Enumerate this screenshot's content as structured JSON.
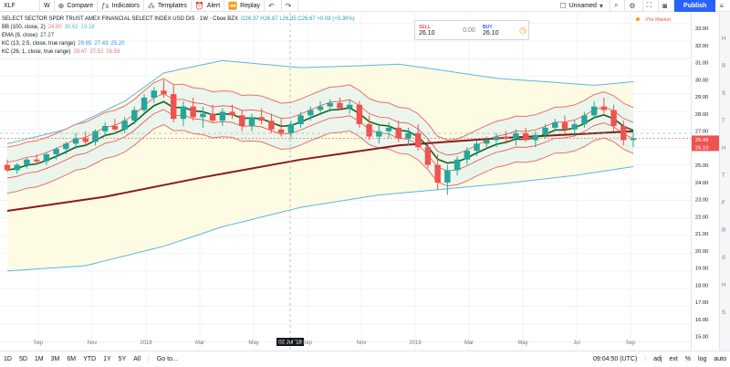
{
  "toolbar": {
    "symbol": "XLF",
    "interval": "W",
    "compare": "Compare",
    "indicators": "Indicators",
    "templates": "Templates",
    "alert": "Alert",
    "replay": "Replay",
    "layout_name": "Unnamed",
    "publish": "Publish"
  },
  "legend": {
    "title": "SELECT SECTOR SPDR TRUST AMEX FINANCIAL SELECT INDEX USD DIS · 1W · Cboe BZX",
    "ohlc": "O26.37 H26.87 L26.35 C26.67 +0.08 (+0.30%)",
    "bb": {
      "label": "BB (100, close, 2)",
      "values": [
        "24.90",
        "30.62",
        "19.18"
      ]
    },
    "ema": {
      "label": "EMA (9, close)",
      "values": [
        "27.27"
      ]
    },
    "kc1": {
      "label": "KC (13, 2.5, close, true range)",
      "values": [
        "29.65",
        "27.43",
        "25.20"
      ]
    },
    "kc2": {
      "label": "KC (26, 1, close, true range)",
      "values": [
        "28.47",
        "27.52",
        "26.56"
      ]
    }
  },
  "trade": {
    "sell_label": "SELL",
    "sell_price": "26.10",
    "spread": "0.00",
    "buy_label": "BUY",
    "buy_price": "26.10"
  },
  "pre_market": "Pre Market",
  "crosshair_date": "02 Jul '18",
  "price_badges": {
    "current": "26.49",
    "bid": "26.10"
  },
  "x_labels": [
    "Sep",
    "Nov",
    "2018",
    "Mar",
    "May",
    "Sep",
    "Nov",
    "2019",
    "Mar",
    "May",
    "Jul",
    "Sep"
  ],
  "bottom": {
    "ranges": [
      "1D",
      "5D",
      "1M",
      "3M",
      "6M",
      "YTD",
      "1Y",
      "5Y",
      "All"
    ],
    "goto": "Go to...",
    "time": "09:04:50 (UTC)",
    "options": [
      "adj",
      "ext",
      "%",
      "log",
      "auto"
    ]
  },
  "right_letters": [
    "H",
    "R",
    "S",
    "T",
    "H",
    "T",
    "F",
    "R",
    "S",
    "H",
    "S"
  ],
  "colors": {
    "up": "#26a69a",
    "down": "#ef5350",
    "bb": "#5bb6e5",
    "bb_fill": "#fdfbe3",
    "kc_outer": "#e57373",
    "kc_fill": "#e6f4ec",
    "ema": "#1b5e20",
    "ma_long": "#8b1a1a"
  },
  "chart_data": {
    "type": "candlestick",
    "price_ticks": [
      "33.00",
      "32.00",
      "31.00",
      "30.00",
      "29.00",
      "28.00",
      "27.00",
      "26.00",
      "25.00",
      "24.00",
      "23.00",
      "22.00",
      "21.00",
      "20.00",
      "19.00",
      "18.00",
      "17.00",
      "16.00",
      "15.00"
    ],
    "ylim": [
      14.5,
      33.6
    ],
    "candles": [
      [
        25.0,
        25.3,
        24.6,
        24.7
      ],
      [
        24.7,
        25.1,
        24.5,
        25.0
      ],
      [
        25.0,
        25.4,
        24.8,
        25.3
      ],
      [
        25.3,
        25.6,
        25.0,
        25.2
      ],
      [
        25.2,
        25.7,
        25.0,
        25.6
      ],
      [
        25.6,
        26.0,
        25.3,
        25.9
      ],
      [
        25.9,
        26.3,
        25.6,
        26.2
      ],
      [
        26.2,
        26.8,
        25.9,
        26.5
      ],
      [
        26.5,
        26.9,
        26.1,
        26.3
      ],
      [
        26.3,
        27.0,
        26.1,
        26.9
      ],
      [
        26.9,
        27.4,
        26.6,
        27.2
      ],
      [
        27.2,
        27.6,
        26.9,
        27.0
      ],
      [
        27.0,
        27.7,
        26.8,
        27.5
      ],
      [
        27.5,
        28.3,
        27.3,
        28.1
      ],
      [
        28.1,
        29.0,
        27.9,
        28.8
      ],
      [
        28.8,
        29.4,
        28.5,
        29.2
      ],
      [
        29.2,
        29.8,
        28.8,
        29.0
      ],
      [
        29.0,
        29.5,
        27.4,
        27.6
      ],
      [
        27.6,
        28.6,
        27.2,
        28.3
      ],
      [
        28.3,
        28.8,
        27.5,
        27.7
      ],
      [
        27.7,
        28.3,
        27.1,
        27.9
      ],
      [
        27.9,
        28.4,
        27.4,
        27.5
      ],
      [
        27.5,
        28.2,
        27.2,
        28.0
      ],
      [
        28.0,
        28.4,
        27.6,
        27.8
      ],
      [
        27.8,
        28.1,
        26.9,
        27.2
      ],
      [
        27.2,
        27.9,
        26.9,
        27.7
      ],
      [
        27.7,
        28.2,
        27.3,
        27.5
      ],
      [
        27.5,
        27.9,
        26.8,
        27.0
      ],
      [
        27.0,
        27.6,
        26.6,
        26.8
      ],
      [
        26.8,
        27.5,
        26.5,
        27.3
      ],
      [
        27.3,
        28.0,
        27.1,
        27.8
      ],
      [
        27.8,
        28.3,
        27.5,
        28.1
      ],
      [
        28.1,
        28.6,
        27.8,
        28.3
      ],
      [
        28.3,
        28.7,
        28.0,
        28.5
      ],
      [
        28.5,
        28.8,
        28.1,
        28.2
      ],
      [
        28.2,
        28.7,
        27.9,
        28.4
      ],
      [
        28.4,
        28.6,
        27.1,
        27.3
      ],
      [
        27.3,
        27.8,
        26.4,
        26.6
      ],
      [
        26.6,
        27.2,
        26.2,
        26.9
      ],
      [
        26.9,
        27.4,
        26.5,
        27.1
      ],
      [
        27.1,
        27.5,
        26.3,
        26.5
      ],
      [
        26.5,
        27.1,
        26.1,
        26.8
      ],
      [
        26.8,
        27.3,
        25.8,
        26.0
      ],
      [
        26.0,
        26.4,
        24.8,
        25.0
      ],
      [
        25.0,
        25.6,
        23.6,
        24.0
      ],
      [
        24.0,
        25.0,
        23.3,
        24.7
      ],
      [
        24.7,
        25.5,
        24.4,
        25.3
      ],
      [
        25.3,
        26.0,
        25.0,
        25.8
      ],
      [
        25.8,
        26.4,
        25.5,
        26.2
      ],
      [
        26.2,
        26.6,
        25.9,
        26.4
      ],
      [
        26.4,
        26.8,
        26.0,
        26.6
      ],
      [
        26.6,
        26.9,
        26.2,
        26.5
      ],
      [
        26.5,
        27.0,
        26.1,
        26.8
      ],
      [
        26.8,
        27.1,
        26.3,
        26.4
      ],
      [
        26.4,
        26.9,
        26.0,
        26.7
      ],
      [
        26.7,
        27.3,
        26.5,
        27.1
      ],
      [
        27.1,
        27.6,
        26.9,
        27.4
      ],
      [
        27.4,
        27.8,
        26.8,
        27.0
      ],
      [
        27.0,
        27.5,
        26.6,
        27.3
      ],
      [
        27.3,
        28.0,
        27.1,
        27.8
      ],
      [
        27.8,
        28.6,
        27.6,
        28.3
      ],
      [
        28.3,
        28.8,
        27.9,
        28.1
      ],
      [
        28.1,
        28.4,
        26.9,
        27.2
      ],
      [
        27.2,
        27.5,
        26.1,
        26.4
      ],
      [
        26.4,
        26.9,
        26.0,
        26.5
      ]
    ],
    "ma_long": [
      [
        0,
        22.4
      ],
      [
        10,
        23.2
      ],
      [
        20,
        24.3
      ],
      [
        30,
        25.3
      ],
      [
        40,
        26.1
      ],
      [
        50,
        26.5
      ],
      [
        64,
        26.9
      ]
    ],
    "bb_upper": [
      [
        0,
        26.2
      ],
      [
        6,
        27.0
      ],
      [
        12,
        28.6
      ],
      [
        16,
        30.2
      ],
      [
        22,
        30.9
      ],
      [
        30,
        30.5
      ],
      [
        36,
        30.6
      ],
      [
        40,
        30.7
      ],
      [
        50,
        29.9
      ],
      [
        60,
        29.5
      ],
      [
        64,
        29.7
      ]
    ],
    "bb_lower": [
      [
        0,
        19.0
      ],
      [
        8,
        19.3
      ],
      [
        16,
        20.4
      ],
      [
        22,
        21.5
      ],
      [
        30,
        22.6
      ],
      [
        38,
        23.3
      ],
      [
        44,
        23.6
      ],
      [
        50,
        23.9
      ],
      [
        58,
        24.4
      ],
      [
        64,
        24.9
      ]
    ]
  }
}
